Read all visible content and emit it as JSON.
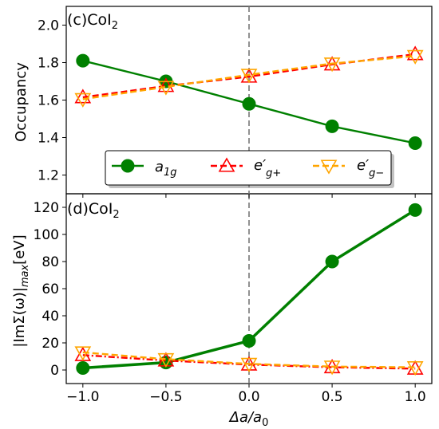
{
  "chart_data": [
    {
      "type": "line",
      "panel_label": "(c)CoI2",
      "x": [
        -1.0,
        -0.5,
        0.0,
        0.5,
        1.0
      ],
      "xlabel": "Δa/a0",
      "ylabel": "Occupancy",
      "ylim": [
        1.1,
        2.1
      ],
      "yticks": [
        1.2,
        1.4,
        1.6,
        1.8,
        2.0
      ],
      "ytick_labels": [
        "1.2",
        "1.4",
        "1.6",
        "1.8",
        "2.0"
      ],
      "vline_x": 0.0,
      "legend": "bottom-center",
      "series": [
        {
          "name": "a1g",
          "color": "#008000",
          "marker": "circle",
          "line": "solid",
          "values": [
            1.81,
            1.7,
            1.58,
            1.46,
            1.37
          ]
        },
        {
          "name": "e'g+",
          "color": "#ff0000",
          "marker": "triangle-up",
          "line": "dashed",
          "values": [
            1.615,
            1.675,
            1.725,
            1.79,
            1.845
          ]
        },
        {
          "name": "e'g-",
          "color": "#ffa500",
          "marker": "triangle-down",
          "line": "dashed",
          "values": [
            1.605,
            1.67,
            1.735,
            1.795,
            1.835
          ]
        }
      ]
    },
    {
      "type": "line",
      "panel_label": "(d)CoI2",
      "x": [
        -1.0,
        -0.5,
        0.0,
        0.5,
        1.0
      ],
      "xticks": [
        -1.0,
        -0.5,
        0.0,
        0.5,
        1.0
      ],
      "xtick_labels": [
        "−1.0",
        "−0.5",
        "0.0",
        "0.5",
        "1.0"
      ],
      "xlabel": "Δa/a0",
      "ylabel": "|ImΣ(ω)|max[eV]",
      "ylim": [
        -10,
        130
      ],
      "yticks": [
        0,
        20,
        40,
        60,
        80,
        100,
        120
      ],
      "ytick_labels": [
        "0",
        "20",
        "40",
        "60",
        "80",
        "100",
        "120"
      ],
      "vline_x": 0.0,
      "series": [
        {
          "name": "a1g",
          "color": "#008000",
          "marker": "circle",
          "line": "solid",
          "values": [
            1.5,
            5.5,
            21.5,
            80,
            118
          ]
        },
        {
          "name": "e'g+",
          "color": "#ff0000",
          "marker": "triangle-up",
          "line": "dashdot",
          "values": [
            11,
            7,
            4,
            2,
            1
          ]
        },
        {
          "name": "e'g-",
          "color": "#ffa500",
          "marker": "triangle-down",
          "line": "dashed",
          "values": [
            13,
            8,
            4.5,
            2.5,
            2
          ]
        }
      ]
    }
  ],
  "labels": {
    "panel_top": "(c)CoI",
    "panel_top_sub": "2",
    "panel_bottom": "(d)CoI",
    "panel_bottom_sub": "2",
    "ylabel_top": "Occupancy",
    "xlabel_main": "Δa/a",
    "xlabel_sub": "0",
    "ylabel_bottom_a": "|ImΣ(ω)|",
    "ylabel_bottom_sub": "max",
    "ylabel_bottom_b": "[eV]",
    "legend_a": "a",
    "legend_a_sub": "1g",
    "legend_b": "e′",
    "legend_b_sub": "g+",
    "legend_c": "e′",
    "legend_c_sub": "g−"
  }
}
